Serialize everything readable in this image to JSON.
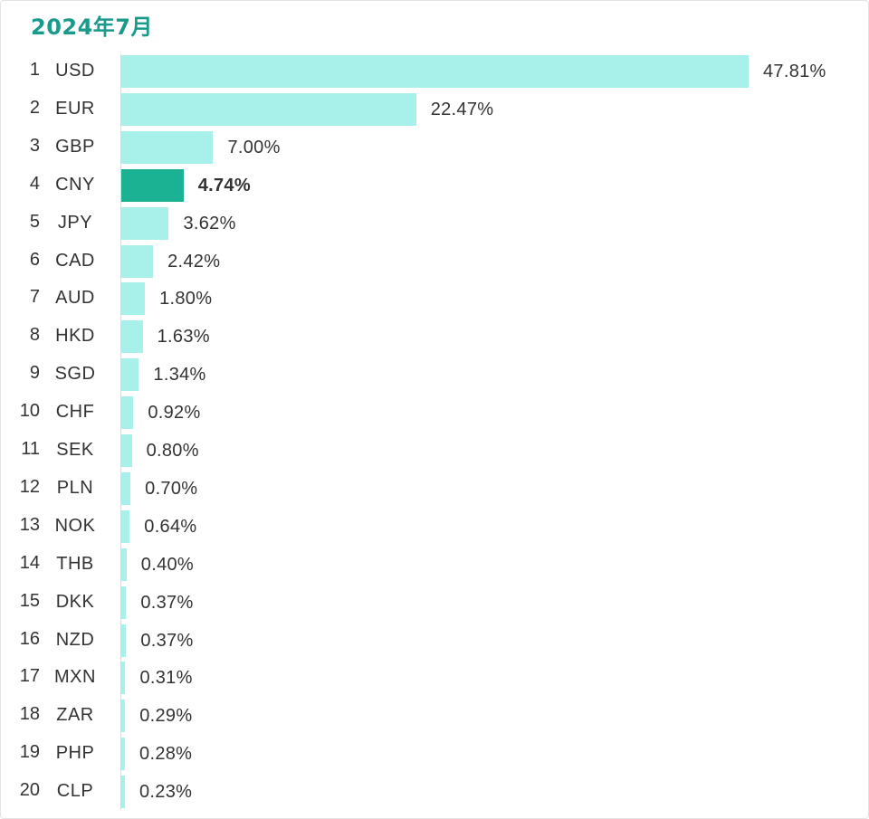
{
  "title": "2024年7月",
  "chart_data": {
    "type": "bar",
    "orientation": "horizontal",
    "title": "2024年7月",
    "xlim": [
      0,
      47.81
    ],
    "highlight_category": "CNY",
    "colors": {
      "bar": "#a8f0ea",
      "highlight": "#1bb293",
      "title": "#1a9a8a"
    },
    "ranks": [
      "1",
      "2",
      "3",
      "4",
      "5",
      "6",
      "7",
      "8",
      "9",
      "10",
      "11",
      "12",
      "13",
      "14",
      "15",
      "16",
      "17",
      "18",
      "19",
      "20"
    ],
    "categories": [
      "USD",
      "EUR",
      "GBP",
      "CNY",
      "JPY",
      "CAD",
      "AUD",
      "HKD",
      "SGD",
      "CHF",
      "SEK",
      "PLN",
      "NOK",
      "THB",
      "DKK",
      "NZD",
      "MXN",
      "ZAR",
      "PHP",
      "CLP"
    ],
    "values": [
      47.81,
      22.47,
      7.0,
      4.74,
      3.62,
      2.42,
      1.8,
      1.63,
      1.34,
      0.92,
      0.8,
      0.7,
      0.64,
      0.4,
      0.37,
      0.37,
      0.31,
      0.29,
      0.28,
      0.23
    ],
    "labels": [
      "47.81%",
      "22.47%",
      "7.00%",
      "4.74%",
      "3.62%",
      "2.42%",
      "1.80%",
      "1.63%",
      "1.34%",
      "0.92%",
      "0.80%",
      "0.70%",
      "0.64%",
      "0.40%",
      "0.37%",
      "0.37%",
      "0.31%",
      "0.29%",
      "0.28%",
      "0.23%"
    ]
  }
}
